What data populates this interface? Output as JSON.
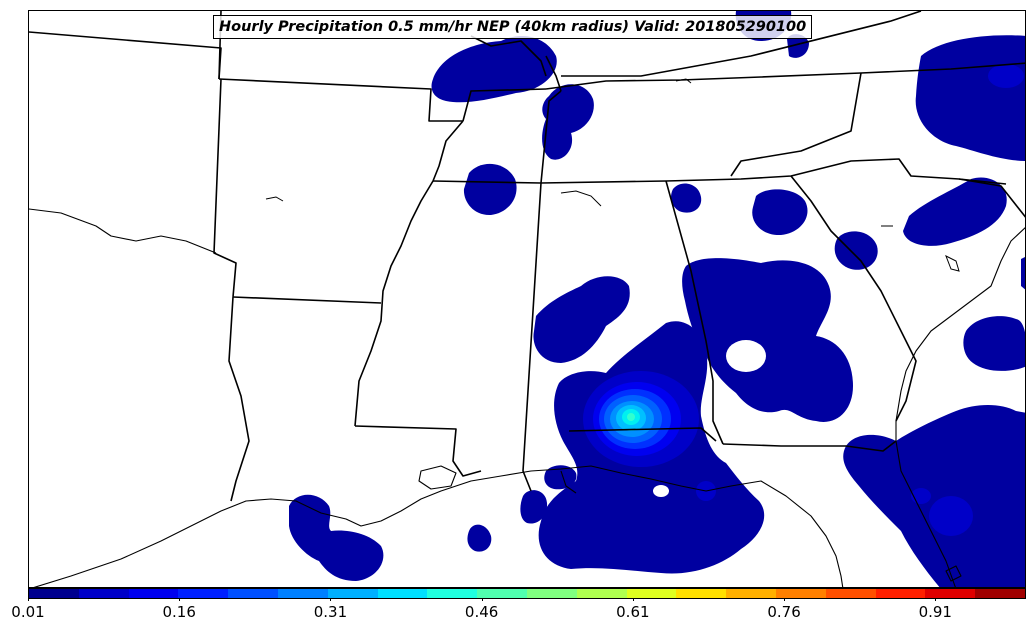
{
  "map": {
    "title": "Hourly Precipitation 0.5 mm/hr NEP (40km radius) Valid: 201805290100",
    "field": "Neighborhood Exceedance Probability",
    "threshold_mm_per_hr": 0.5,
    "radius_km": 40,
    "valid_time": "201805290100",
    "region": "Southeastern United States",
    "colors": {
      "low": "#0000a0",
      "mid": "#00ffff",
      "borders": "#000000",
      "background": "#ffffff"
    }
  },
  "colorbar": {
    "tick_labels": [
      "0.01",
      "0.16",
      "0.31",
      "0.46",
      "0.61",
      "0.76",
      "0.91"
    ],
    "tick_values": [
      0.01,
      0.16,
      0.31,
      0.46,
      0.61,
      0.76,
      0.91
    ],
    "range": [
      0.01,
      1.0
    ],
    "colors": [
      "#00008f",
      "#0000c8",
      "#0000f0",
      "#0020ff",
      "#0050ff",
      "#0080ff",
      "#00b0ff",
      "#00e0ff",
      "#20ffdf",
      "#50ffaf",
      "#80ff80",
      "#afff50",
      "#dfff20",
      "#ffe000",
      "#ffb000",
      "#ff8000",
      "#ff5000",
      "#ff2000",
      "#e00000",
      "#a00000"
    ]
  }
}
